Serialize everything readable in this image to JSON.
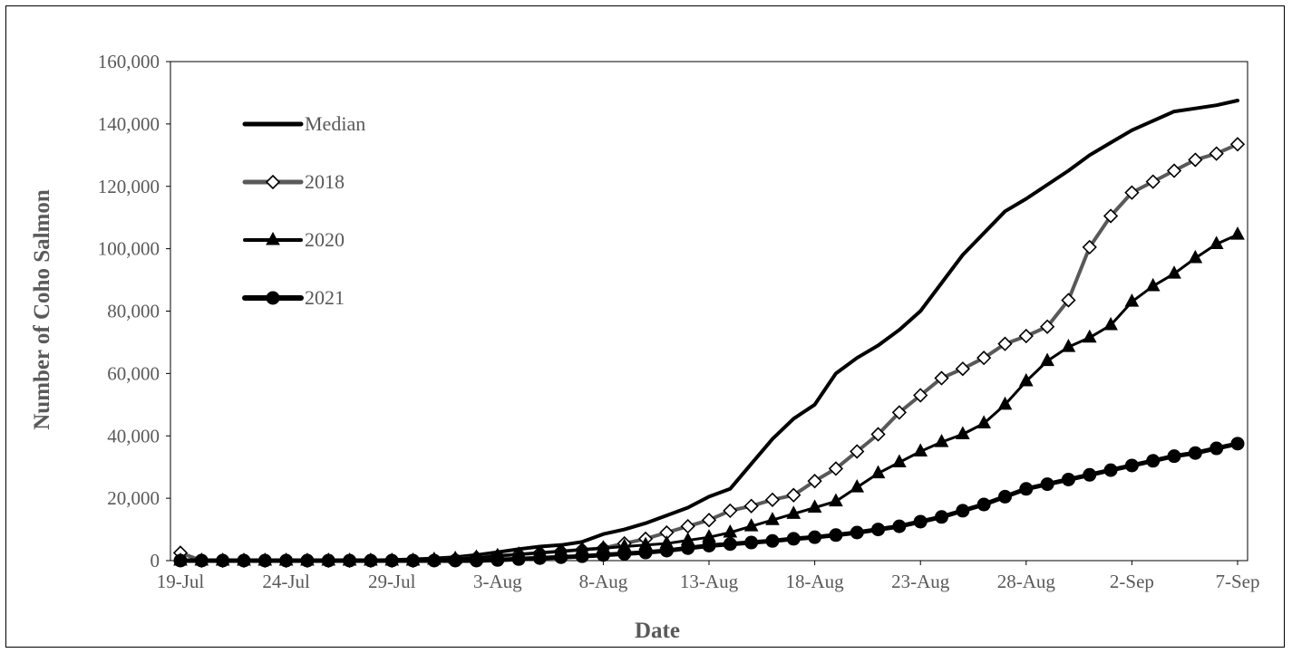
{
  "chart_data": {
    "type": "line",
    "title": "",
    "xlabel": "Date",
    "ylabel": "Number of Coho Salmon",
    "x_ticks": [
      "19-Jul",
      "24-Jul",
      "29-Jul",
      "3-Aug",
      "8-Aug",
      "13-Aug",
      "18-Aug",
      "23-Aug",
      "28-Aug",
      "2-Sep",
      "7-Sep"
    ],
    "y_ticks": [
      "0",
      "20,000",
      "40,000",
      "60,000",
      "80,000",
      "100,000",
      "120,000",
      "140,000",
      "160,000"
    ],
    "ylim": [
      0,
      160000
    ],
    "x_range": [
      "19-Jul",
      "7-Sep"
    ],
    "grid": false,
    "legend_position": "top-left",
    "series": [
      {
        "name": "Median",
        "color": "#000000",
        "marker": "none",
        "x": [
          "19-Jul",
          "20-Jul",
          "21-Jul",
          "22-Jul",
          "23-Jul",
          "24-Jul",
          "25-Jul",
          "26-Jul",
          "27-Jul",
          "28-Jul",
          "29-Jul",
          "30-Jul",
          "31-Jul",
          "1-Aug",
          "2-Aug",
          "3-Aug",
          "4-Aug",
          "5-Aug",
          "6-Aug",
          "7-Aug",
          "8-Aug",
          "9-Aug",
          "10-Aug",
          "11-Aug",
          "12-Aug",
          "13-Aug",
          "14-Aug",
          "15-Aug",
          "16-Aug",
          "17-Aug",
          "18-Aug",
          "19-Aug",
          "20-Aug",
          "21-Aug",
          "22-Aug",
          "23-Aug",
          "24-Aug",
          "25-Aug",
          "26-Aug",
          "27-Aug",
          "28-Aug",
          "29-Aug",
          "30-Aug",
          "31-Aug",
          "1-Sep",
          "2-Sep",
          "3-Sep",
          "4-Sep",
          "5-Sep",
          "6-Sep",
          "7-Sep"
        ],
        "values": [
          0,
          0,
          0,
          0,
          0,
          0,
          0,
          0,
          0,
          100,
          200,
          400,
          700,
          1100,
          1800,
          2700,
          3700,
          4500,
          5000,
          6000,
          8500,
          10000,
          12000,
          14500,
          17000,
          20500,
          23000,
          31000,
          39000,
          45500,
          50000,
          60000,
          65000,
          69000,
          74000,
          80000,
          89000,
          98000,
          105000,
          112000,
          116000,
          120500,
          125000,
          130000,
          134000,
          138000,
          141000,
          144000,
          145000,
          146000,
          147500
        ]
      },
      {
        "name": "2018",
        "color": "#595959",
        "marker": "open-diamond",
        "x": [
          "19-Jul",
          "20-Jul",
          "21-Jul",
          "22-Jul",
          "23-Jul",
          "24-Jul",
          "25-Jul",
          "26-Jul",
          "27-Jul",
          "28-Jul",
          "29-Jul",
          "30-Jul",
          "31-Jul",
          "1-Aug",
          "2-Aug",
          "3-Aug",
          "4-Aug",
          "5-Aug",
          "6-Aug",
          "7-Aug",
          "8-Aug",
          "9-Aug",
          "10-Aug",
          "11-Aug",
          "12-Aug",
          "13-Aug",
          "14-Aug",
          "15-Aug",
          "16-Aug",
          "17-Aug",
          "18-Aug",
          "19-Aug",
          "20-Aug",
          "21-Aug",
          "22-Aug",
          "23-Aug",
          "24-Aug",
          "25-Aug",
          "26-Aug",
          "27-Aug",
          "28-Aug",
          "29-Aug",
          "30-Aug",
          "31-Aug",
          "1-Sep",
          "2-Sep",
          "3-Sep",
          "4-Sep",
          "5-Sep",
          "6-Sep",
          "7-Sep"
        ],
        "values": [
          2500,
          0,
          0,
          0,
          0,
          0,
          0,
          0,
          0,
          0,
          0,
          0,
          200,
          500,
          1000,
          1500,
          2000,
          2500,
          3000,
          3500,
          4000,
          5500,
          7000,
          9000,
          11000,
          13000,
          16000,
          17500,
          19500,
          21000,
          25500,
          29500,
          35000,
          40500,
          47500,
          53000,
          58500,
          61500,
          65000,
          69500,
          72000,
          75000,
          83500,
          100500,
          110500,
          118000,
          121500,
          125000,
          128500,
          130500,
          133500
        ]
      },
      {
        "name": "2020",
        "color": "#000000",
        "marker": "filled-triangle",
        "x": [
          "19-Jul",
          "20-Jul",
          "21-Jul",
          "22-Jul",
          "23-Jul",
          "24-Jul",
          "25-Jul",
          "26-Jul",
          "27-Jul",
          "28-Jul",
          "29-Jul",
          "30-Jul",
          "31-Jul",
          "1-Aug",
          "2-Aug",
          "3-Aug",
          "4-Aug",
          "5-Aug",
          "6-Aug",
          "7-Aug",
          "8-Aug",
          "9-Aug",
          "10-Aug",
          "11-Aug",
          "12-Aug",
          "13-Aug",
          "14-Aug",
          "15-Aug",
          "16-Aug",
          "17-Aug",
          "18-Aug",
          "19-Aug",
          "20-Aug",
          "21-Aug",
          "22-Aug",
          "23-Aug",
          "24-Aug",
          "25-Aug",
          "26-Aug",
          "27-Aug",
          "28-Aug",
          "29-Aug",
          "30-Aug",
          "31-Aug",
          "1-Sep",
          "2-Sep",
          "3-Sep",
          "4-Sep",
          "5-Sep",
          "6-Sep",
          "7-Sep"
        ],
        "values": [
          0,
          0,
          0,
          0,
          0,
          0,
          0,
          0,
          0,
          0,
          0,
          0,
          300,
          600,
          1000,
          1500,
          2000,
          2500,
          3000,
          3500,
          4000,
          4500,
          5000,
          5500,
          6500,
          7500,
          9000,
          11000,
          13000,
          15000,
          17000,
          19000,
          23500,
          28000,
          31500,
          35000,
          38000,
          40500,
          44000,
          50000,
          57500,
          64000,
          68500,
          71500,
          75500,
          83000,
          88000,
          92000,
          97000,
          101500,
          104500
        ]
      },
      {
        "name": "2021",
        "color": "#000000",
        "marker": "filled-circle",
        "x": [
          "19-Jul",
          "20-Jul",
          "21-Jul",
          "22-Jul",
          "23-Jul",
          "24-Jul",
          "25-Jul",
          "26-Jul",
          "27-Jul",
          "28-Jul",
          "29-Jul",
          "30-Jul",
          "31-Jul",
          "1-Aug",
          "2-Aug",
          "3-Aug",
          "4-Aug",
          "5-Aug",
          "6-Aug",
          "7-Aug",
          "8-Aug",
          "9-Aug",
          "10-Aug",
          "11-Aug",
          "12-Aug",
          "13-Aug",
          "14-Aug",
          "15-Aug",
          "16-Aug",
          "17-Aug",
          "18-Aug",
          "19-Aug",
          "20-Aug",
          "21-Aug",
          "22-Aug",
          "23-Aug",
          "24-Aug",
          "25-Aug",
          "26-Aug",
          "27-Aug",
          "28-Aug",
          "29-Aug",
          "30-Aug",
          "31-Aug",
          "1-Sep",
          "2-Sep",
          "3-Sep",
          "4-Sep",
          "5-Sep",
          "6-Sep",
          "7-Sep"
        ],
        "values": [
          0,
          0,
          0,
          0,
          0,
          0,
          0,
          0,
          0,
          0,
          0,
          0,
          0,
          0,
          0,
          200,
          500,
          800,
          1100,
          1400,
          1800,
          2200,
          2600,
          3200,
          4000,
          4800,
          5300,
          5800,
          6300,
          7000,
          7500,
          8200,
          9000,
          10000,
          11000,
          12500,
          14000,
          16000,
          18000,
          20500,
          23000,
          24500,
          26000,
          27500,
          29000,
          30500,
          32000,
          33500,
          34500,
          36000,
          37500
        ]
      }
    ]
  }
}
